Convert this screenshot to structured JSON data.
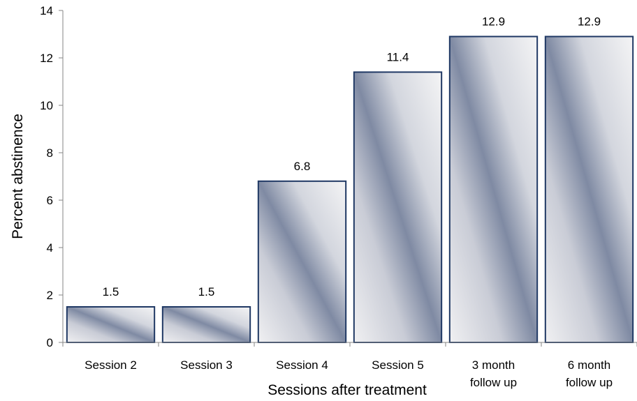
{
  "chart_data": {
    "type": "bar",
    "categories": [
      "Session 2",
      "Session 3",
      "Session 4",
      "Session 5",
      "3 month follow up",
      "6 month follow up"
    ],
    "values": [
      1.5,
      1.5,
      6.8,
      11.4,
      12.9,
      12.9
    ],
    "data_labels": [
      "1.5",
      "1.5",
      "6.8",
      "11.4",
      "12.9",
      "12.9"
    ],
    "xlabel": "Sessions after treatment",
    "ylabel": "Percent abstinence",
    "ylim": [
      0,
      14
    ],
    "yticks": [
      0,
      2,
      4,
      6,
      8,
      10,
      12,
      14
    ],
    "grid": false,
    "legend": "none",
    "colors": {
      "bar_edge": "#1f3864",
      "bar_light": "#f2f2f2",
      "bar_dark": "#7f8aa3",
      "axis": "#868686"
    }
  }
}
